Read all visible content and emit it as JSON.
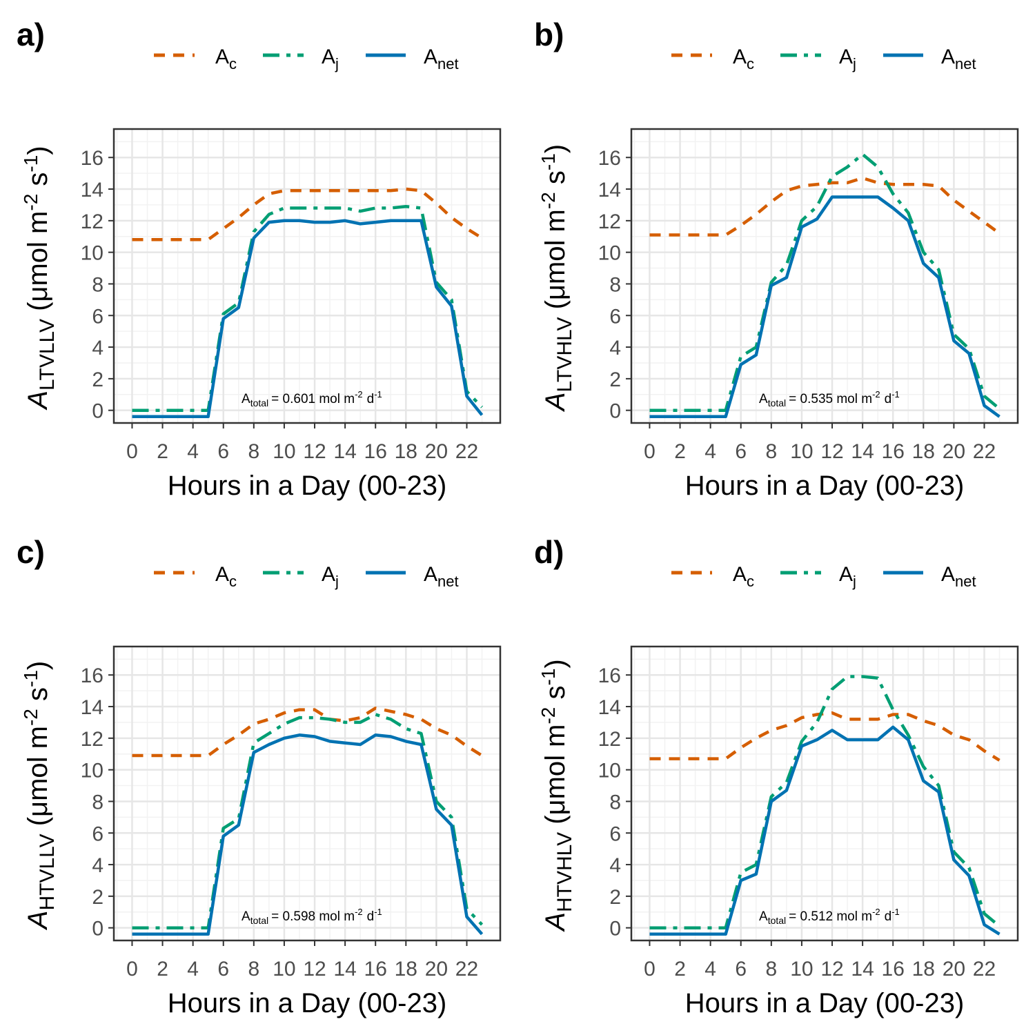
{
  "colors": {
    "Ac": "#d55e00",
    "Aj": "#009e73",
    "Anet": "#0072b2",
    "panel_border": "#333333",
    "grid_major": "#e6e6e6",
    "grid_minor": "#f2f2f2",
    "axis_text": "#4d4d4d",
    "text": "#000000"
  },
  "legend": {
    "Ac": {
      "base": "A",
      "sub": "c",
      "style": "dashed"
    },
    "Aj": {
      "base": "A",
      "sub": "j",
      "style": "dashed"
    },
    "Anet": {
      "base": "A",
      "sub": "net",
      "style": "solid"
    }
  },
  "axes_common": {
    "xlabel": "Hours in a Day (00-23)",
    "ylabel_unit": "(μmol m-2 s-1)",
    "xticks": [
      0,
      2,
      4,
      6,
      8,
      10,
      12,
      14,
      16,
      18,
      20,
      22
    ],
    "yticks": [
      0,
      2,
      4,
      6,
      8,
      10,
      12,
      14,
      16
    ],
    "xlim": [
      -1.2,
      24.2
    ],
    "ylim": [
      -0.8,
      17.8
    ],
    "grid": true,
    "legend_position": "top"
  },
  "chart_data": [
    {
      "type": "line",
      "panel_label": "a)",
      "ylabel_base": "A",
      "ylabel_sub": "LTVLLV",
      "annotation": {
        "base": "A",
        "sub": "total",
        "text": "= 0.601 mol m-2 d-1"
      },
      "x": [
        0,
        1,
        2,
        3,
        4,
        5,
        6,
        7,
        8,
        9,
        10,
        11,
        12,
        13,
        14,
        15,
        16,
        17,
        18,
        19,
        20,
        21,
        22,
        23
      ],
      "series": [
        {
          "name": "Ac",
          "values": [
            10.8,
            10.8,
            10.8,
            10.8,
            10.8,
            10.8,
            11.5,
            12.2,
            13.0,
            13.7,
            13.9,
            13.9,
            13.9,
            13.9,
            13.9,
            13.9,
            13.9,
            13.9,
            14.0,
            13.9,
            13.1,
            12.2,
            11.5,
            10.9
          ]
        },
        {
          "name": "Aj",
          "values": [
            0.0,
            0.0,
            0.0,
            0.0,
            0.0,
            0.0,
            6.1,
            6.8,
            11.3,
            12.4,
            12.8,
            12.8,
            12.8,
            12.8,
            12.8,
            12.6,
            12.8,
            12.8,
            12.9,
            12.8,
            8.1,
            7.0,
            1.2,
            0.2
          ]
        },
        {
          "name": "Anet",
          "values": [
            -0.4,
            -0.4,
            -0.4,
            -0.4,
            -0.4,
            -0.4,
            5.8,
            6.5,
            10.9,
            11.9,
            12.0,
            12.0,
            11.9,
            11.9,
            12.0,
            11.8,
            11.9,
            12.0,
            12.0,
            12.0,
            7.8,
            6.6,
            0.9,
            -0.3
          ]
        }
      ]
    },
    {
      "type": "line",
      "panel_label": "b)",
      "ylabel_base": "A",
      "ylabel_sub": "LTVHLV",
      "annotation": {
        "base": "A",
        "sub": "total",
        "text": "= 0.535 mol m-2 d-1"
      },
      "x": [
        0,
        1,
        2,
        3,
        4,
        5,
        6,
        7,
        8,
        9,
        10,
        11,
        12,
        13,
        14,
        15,
        16,
        17,
        18,
        19,
        20,
        21,
        22,
        23
      ],
      "series": [
        {
          "name": "Ac",
          "values": [
            11.1,
            11.1,
            11.1,
            11.1,
            11.1,
            11.1,
            11.7,
            12.4,
            13.2,
            13.9,
            14.2,
            14.3,
            14.4,
            14.4,
            14.7,
            14.4,
            14.3,
            14.3,
            14.3,
            14.2,
            13.3,
            12.6,
            11.9,
            11.2
          ]
        },
        {
          "name": "Aj",
          "values": [
            0.0,
            0.0,
            0.0,
            0.0,
            0.0,
            0.0,
            3.4,
            4.0,
            8.1,
            9.2,
            12.0,
            12.9,
            14.8,
            15.4,
            16.2,
            15.4,
            13.7,
            12.5,
            10.0,
            8.9,
            4.8,
            3.9,
            0.9,
            0.1
          ]
        },
        {
          "name": "Anet",
          "values": [
            -0.4,
            -0.4,
            -0.4,
            -0.4,
            -0.4,
            -0.4,
            2.9,
            3.5,
            7.9,
            8.4,
            11.6,
            12.1,
            13.5,
            13.5,
            13.5,
            13.5,
            12.8,
            12.0,
            9.3,
            8.4,
            4.4,
            3.6,
            0.3,
            -0.4
          ]
        }
      ]
    },
    {
      "type": "line",
      "panel_label": "c)",
      "ylabel_base": "A",
      "ylabel_sub": "HTVLLV",
      "annotation": {
        "base": "A",
        "sub": "total",
        "text": "= 0.598 mol m-2 d-1"
      },
      "x": [
        0,
        1,
        2,
        3,
        4,
        5,
        6,
        7,
        8,
        9,
        10,
        11,
        12,
        13,
        14,
        15,
        16,
        17,
        18,
        19,
        20,
        21,
        22,
        23
      ],
      "series": [
        {
          "name": "Ac",
          "values": [
            10.9,
            10.9,
            10.9,
            10.9,
            10.9,
            10.9,
            11.6,
            12.2,
            12.9,
            13.2,
            13.6,
            13.8,
            13.8,
            13.2,
            13.1,
            13.3,
            13.9,
            13.7,
            13.5,
            13.2,
            12.6,
            12.2,
            11.5,
            10.9
          ]
        },
        {
          "name": "Aj",
          "values": [
            0.0,
            0.0,
            0.0,
            0.0,
            0.0,
            0.0,
            6.3,
            6.9,
            11.7,
            12.3,
            12.9,
            13.3,
            13.3,
            13.2,
            13.0,
            13.0,
            13.5,
            13.2,
            12.6,
            12.3,
            8.0,
            7.0,
            1.2,
            0.2
          ]
        },
        {
          "name": "Anet",
          "values": [
            -0.4,
            -0.4,
            -0.4,
            -0.4,
            -0.4,
            -0.4,
            5.8,
            6.5,
            11.1,
            11.6,
            12.0,
            12.2,
            12.1,
            11.8,
            11.7,
            11.6,
            12.2,
            12.1,
            11.8,
            11.6,
            7.5,
            6.5,
            0.7,
            -0.4
          ]
        }
      ]
    },
    {
      "type": "line",
      "panel_label": "d)",
      "ylabel_base": "A",
      "ylabel_sub": "HTVHLV",
      "annotation": {
        "base": "A",
        "sub": "total",
        "text": "= 0.512 mol m-2 d-1"
      },
      "x": [
        0,
        1,
        2,
        3,
        4,
        5,
        6,
        7,
        8,
        9,
        10,
        11,
        12,
        13,
        14,
        15,
        16,
        17,
        18,
        19,
        20,
        21,
        22,
        23
      ],
      "series": [
        {
          "name": "Ac",
          "values": [
            10.7,
            10.7,
            10.7,
            10.7,
            10.7,
            10.7,
            11.4,
            12.0,
            12.5,
            12.8,
            13.3,
            13.5,
            13.6,
            13.2,
            13.2,
            13.2,
            13.5,
            13.5,
            13.1,
            12.8,
            12.2,
            11.9,
            11.2,
            10.6
          ]
        },
        {
          "name": "Aj",
          "values": [
            0.0,
            0.0,
            0.0,
            0.0,
            0.0,
            0.0,
            3.5,
            4.0,
            8.3,
            9.2,
            11.8,
            13.0,
            15.1,
            15.9,
            15.9,
            15.8,
            13.8,
            12.2,
            10.2,
            9.0,
            4.8,
            3.8,
            0.9,
            0.1
          ]
        },
        {
          "name": "Anet",
          "values": [
            -0.4,
            -0.4,
            -0.4,
            -0.4,
            -0.4,
            -0.4,
            3.0,
            3.4,
            8.0,
            8.7,
            11.5,
            11.9,
            12.5,
            11.9,
            11.9,
            11.9,
            12.7,
            11.9,
            9.3,
            8.6,
            4.3,
            3.3,
            0.2,
            -0.4
          ]
        }
      ]
    }
  ]
}
